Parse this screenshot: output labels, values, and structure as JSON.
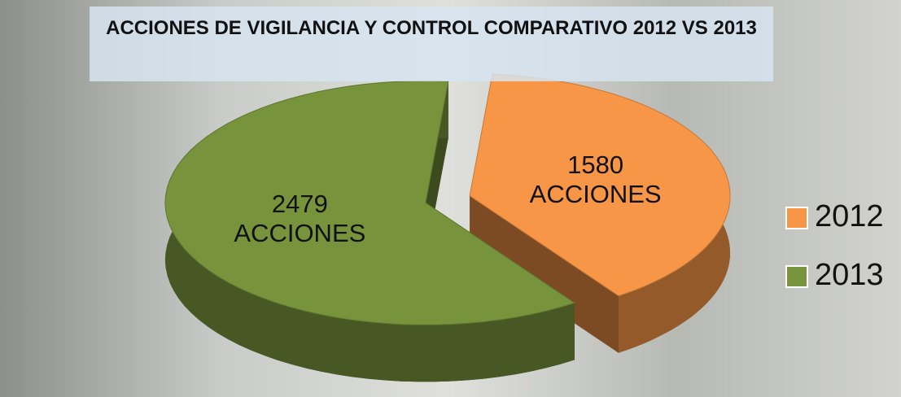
{
  "chart_data": {
    "type": "pie",
    "title": "ACCIONES DE VIGILANCIA Y CONTROL COMPARATIVO 2012 VS 2013",
    "categories": [
      "2012",
      "2013"
    ],
    "values": [
      1580,
      2479
    ],
    "value_labels": [
      "1580 ACCIONES",
      "2479 ACCIONES"
    ],
    "colors": [
      "#f79646",
      "#77933c"
    ],
    "legend": "right"
  }
}
